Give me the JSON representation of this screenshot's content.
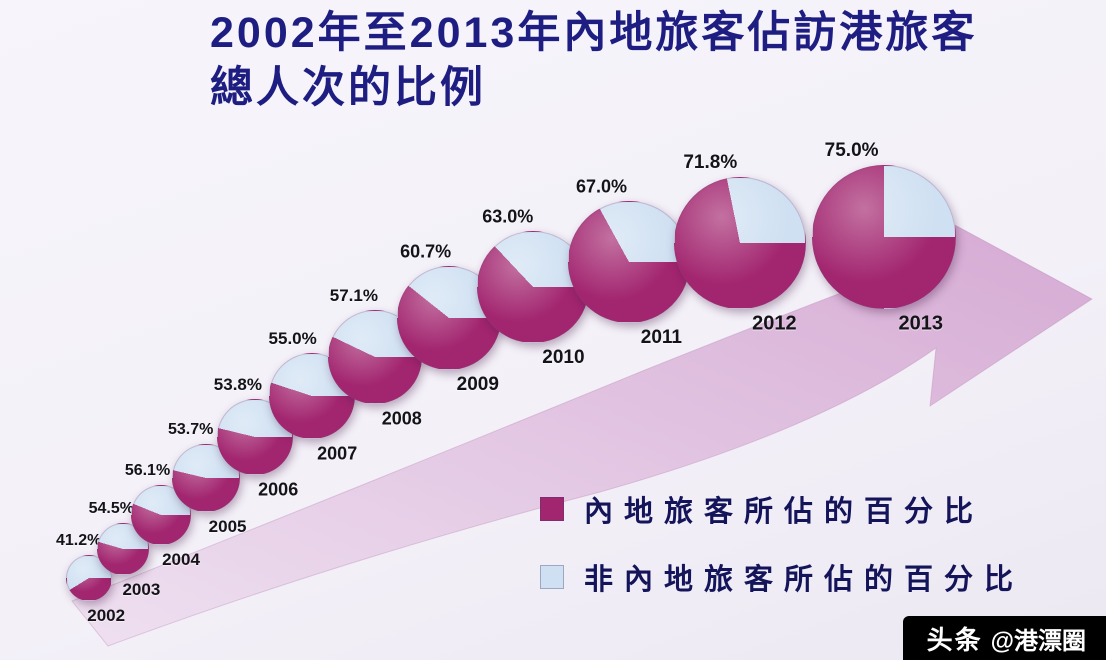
{
  "title": {
    "line1": "2002年至2013年內地旅客佔訪港旅客",
    "line2": "總人次的比例"
  },
  "chart_data": {
    "type": "pie",
    "title": "2002年至2013年內地旅客佔訪港旅客總人次的比例",
    "years": [
      "2002",
      "2003",
      "2004",
      "2005",
      "2006",
      "2007",
      "2008",
      "2009",
      "2010",
      "2011",
      "2012",
      "2013"
    ],
    "values": [
      41.2,
      54.5,
      56.1,
      53.7,
      53.8,
      55.0,
      57.1,
      60.7,
      63.0,
      67.0,
      71.8,
      75.0
    ],
    "value_labels": [
      "41.2%",
      "54.5%",
      "56.1%",
      "53.7%",
      "53.8%",
      "55.0%",
      "57.1%",
      "60.7%",
      "63.0%",
      "67.0%",
      "71.8%",
      "75.0%"
    ],
    "legend": [
      {
        "label": "內地旅客所佔的百分比",
        "color": "#a2256f"
      },
      {
        "label": "非內地旅客所佔的百分比",
        "color": "#cfe0f2"
      }
    ],
    "legend_position": "bottom-right",
    "layout_hint": "pies grow along an ascending arrow from 2002 (bottom-left) to 2013 (top-right)"
  },
  "colors": {
    "mainland": "#a2256f",
    "non_mainland": "#cfe0f2",
    "title": "#1e1e82",
    "arrow_light": "#eedff0",
    "arrow_dark": "#d5a9d3",
    "background": "#f3f0f8"
  },
  "watermark": {
    "brand": "头条",
    "handle": "@港漂圈"
  }
}
